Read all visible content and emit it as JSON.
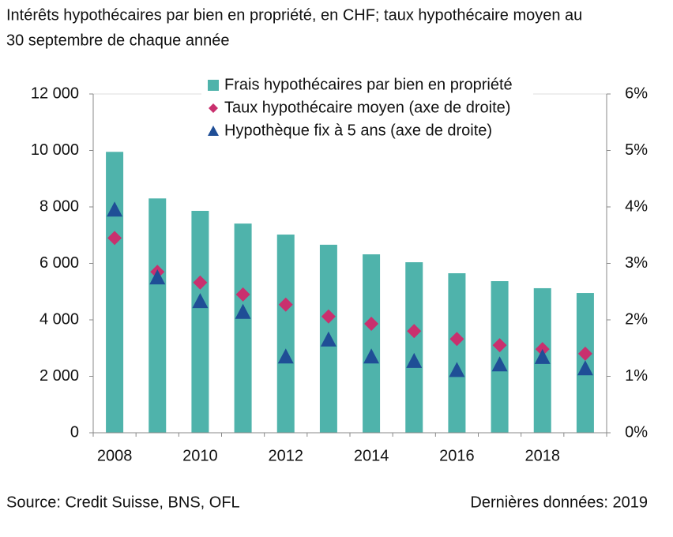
{
  "chart_data": {
    "type": "bar",
    "title": [
      "Intérêts hypothécaires par bien en propriété, en CHF; taux hypothécaire moyen au",
      "30 septembre de chaque année"
    ],
    "source": "Source: Credit Suisse, BNS, OFL",
    "note": "Dernières données: 2019",
    "categories": [
      "2008",
      null,
      "2010",
      null,
      "2012",
      null,
      "2014",
      null,
      "2016",
      null,
      "2018",
      null
    ],
    "series": [
      {
        "name": "Frais hypothécaires par bien en propriété",
        "color": "#4fb3ab",
        "marker": "bar",
        "values": [
          9950,
          8300,
          7860,
          7410,
          7020,
          6660,
          6320,
          6040,
          5650,
          5370,
          5120,
          4950
        ]
      },
      {
        "name": "Taux hypothécaire moyen (axe de droite)",
        "color": "#c9306e",
        "marker": "diamond",
        "axis": "y2",
        "values": [
          3.45,
          2.85,
          2.66,
          2.45,
          2.27,
          2.06,
          1.93,
          1.8,
          1.66,
          1.55,
          1.48,
          1.4
        ]
      },
      {
        "name": "Hypothèque fix à 5 ans (axe de droite)",
        "color": "#1f4e96",
        "marker": "triangle",
        "axis": "y2",
        "values": [
          3.94,
          2.74,
          2.32,
          2.13,
          1.34,
          1.64,
          1.34,
          1.26,
          1.1,
          1.2,
          1.33,
          1.13
        ]
      }
    ],
    "ylim": [
      0,
      12000
    ],
    "yticks": [
      {
        "value": 0,
        "label": "0"
      },
      {
        "value": 2000,
        "label": "2 000"
      },
      {
        "value": 4000,
        "label": "4 000"
      },
      {
        "value": 6000,
        "label": "6 000"
      },
      {
        "value": 8000,
        "label": "8 000"
      },
      {
        "value": 10000,
        "label": "10 000"
      },
      {
        "value": 12000,
        "label": "12 000"
      }
    ],
    "y2lim": [
      0,
      6
    ],
    "y2ticks": [
      {
        "value": 0,
        "label": "0%"
      },
      {
        "value": 1,
        "label": "1%"
      },
      {
        "value": 2,
        "label": "2%"
      },
      {
        "value": 3,
        "label": "3%"
      },
      {
        "value": 4,
        "label": "4%"
      },
      {
        "value": 5,
        "label": "5%"
      },
      {
        "value": 6,
        "label": "6%"
      }
    ],
    "legend": "top"
  }
}
